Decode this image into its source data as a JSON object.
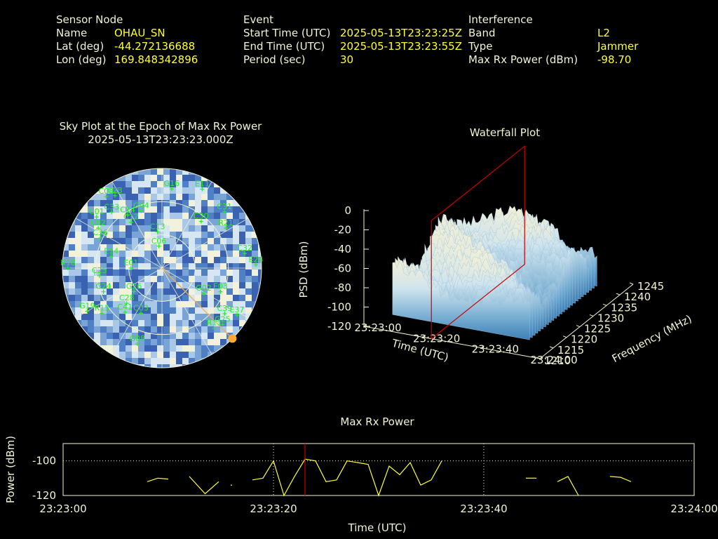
{
  "header": {
    "sensor": {
      "heading": "Sensor Node",
      "rows": [
        {
          "label": "Name",
          "value": "OHAU_SN"
        },
        {
          "label": "Lat (deg)",
          "value": "-44.272136688"
        },
        {
          "label": "Lon (deg)",
          "value": "169.848342896"
        }
      ]
    },
    "event": {
      "heading": "Event",
      "rows": [
        {
          "label": "Start Time (UTC)",
          "value": "2025-05-13T23:23:25Z"
        },
        {
          "label": "End Time (UTC)",
          "value": "2025-05-13T23:23:55Z"
        },
        {
          "label": "Period (sec)",
          "value": "30"
        }
      ]
    },
    "interference": {
      "heading": "Interference",
      "rows": [
        {
          "label": "Band",
          "value": "L2"
        },
        {
          "label": "Type",
          "value": "Jammer"
        },
        {
          "label": "Max Rx Power (dBm)",
          "value": "-98.70"
        }
      ]
    }
  },
  "colors": {
    "label": "#f3f3d2",
    "value": "#ffff33",
    "satellite": "#22ee22",
    "power_line": "#ffff33",
    "marker": "#cc0000",
    "jammer": "#ffaa33"
  },
  "chart_data": [
    {
      "type": "scatter",
      "title": "Sky Plot at the Epoch of Max Rx Power",
      "subtitle": "2025-05-13T23:23:23.000Z",
      "coordinates": "polar azimuth/elevation",
      "satellites": [
        {
          "id": "C08",
          "az": 322,
          "el": 8
        },
        {
          "id": "C23",
          "az": 327,
          "el": 12
        },
        {
          "id": "C33",
          "az": 318,
          "el": 22
        },
        {
          "id": "C12",
          "az": 326,
          "el": 40
        },
        {
          "id": "C14",
          "az": 327,
          "el": 33
        },
        {
          "id": "G04",
          "az": 340,
          "el": 35
        },
        {
          "id": "G16",
          "az": 7,
          "el": 18
        },
        {
          "id": "E11",
          "az": 27,
          "el": 10
        },
        {
          "id": "C31",
          "az": 48,
          "el": 14
        },
        {
          "id": "C01",
          "az": 308,
          "el": 15
        },
        {
          "id": "C02",
          "az": 302,
          "el": 22
        },
        {
          "id": "C36",
          "az": 296,
          "el": 28
        },
        {
          "id": "C13",
          "az": 353,
          "el": 57
        },
        {
          "id": "C30",
          "az": 40,
          "el": 35
        },
        {
          "id": "R21",
          "az": 58,
          "el": 22
        },
        {
          "id": "C06",
          "az": 352,
          "el": 70
        },
        {
          "id": "C32",
          "az": 80,
          "el": 14
        },
        {
          "id": "E01",
          "az": 270,
          "el": 62
        },
        {
          "id": "E14",
          "az": 283,
          "el": 43
        },
        {
          "id": "C25",
          "az": 263,
          "el": 33
        },
        {
          "id": "E24",
          "az": 88,
          "el": 5
        },
        {
          "id": "R18",
          "az": 270,
          "el": 5
        },
        {
          "id": "C28",
          "az": 225,
          "el": 45
        },
        {
          "id": "G26",
          "az": 230,
          "el": 57
        },
        {
          "id": "G02",
          "az": 121,
          "el": 46
        },
        {
          "id": "E03",
          "az": 112,
          "el": 33
        },
        {
          "id": "G24",
          "az": 248,
          "el": 33
        },
        {
          "id": "C41",
          "az": 220,
          "el": 38
        },
        {
          "id": "C03",
          "az": 205,
          "el": 45
        },
        {
          "id": "R15",
          "az": 233,
          "el": 22
        },
        {
          "id": "G19",
          "az": 240,
          "el": 12
        },
        {
          "id": "C39",
          "az": 126,
          "el": 20
        },
        {
          "id": "R11",
          "az": 139,
          "el": 18
        },
        {
          "id": "G25",
          "az": 133,
          "el": 15
        },
        {
          "id": "G08",
          "az": 198,
          "el": 18
        },
        {
          "id": "E37",
          "az": 122,
          "el": 10
        }
      ],
      "jammer_direction": {
        "az": 135,
        "el": 0
      }
    },
    {
      "type": "area",
      "title": "Waterfall Plot",
      "xlabel": "Time (UTC)",
      "ylabel": "Frequency (MHz)",
      "zlabel": "PSD (dBm)",
      "x_ticks": [
        "23:23:00",
        "23:23:20",
        "23:23:40",
        "23:24:00"
      ],
      "y_ticks": [
        "1210",
        "1215",
        "1220",
        "1225",
        "1230",
        "1235",
        "1240",
        "1245"
      ],
      "z_ticks": [
        "0",
        "-20",
        "-40",
        "-60",
        "-80",
        "-100",
        "-120"
      ],
      "zlim": [
        -120,
        0
      ],
      "ylim": [
        1210,
        1245
      ],
      "marker_time": "23:23:23"
    },
    {
      "type": "line",
      "title": "Max Rx Power",
      "xlabel": "Time (UTC)",
      "ylabel": "Power (dBm)",
      "x_ticks": [
        "23:23:00",
        "23:23:20",
        "23:23:40",
        "23:24:00"
      ],
      "y_ticks": [
        "-100",
        "-120"
      ],
      "ylim": [
        -120,
        -90
      ],
      "xlim_sec": [
        0,
        60
      ],
      "marker_sec": 23,
      "segments": [
        [
          [
            8,
            -112
          ],
          [
            9,
            -110
          ],
          [
            10,
            -110.5
          ]
        ],
        [
          [
            12,
            -109
          ],
          [
            13.5,
            -119
          ],
          [
            14.8,
            -112
          ]
        ],
        [
          [
            16,
            -114
          ]
        ],
        [
          [
            18,
            -111
          ],
          [
            19,
            -110
          ],
          [
            20,
            -100
          ],
          [
            21,
            -121
          ],
          [
            22,
            -109
          ],
          [
            23,
            -99
          ],
          [
            24,
            -100
          ],
          [
            25,
            -112
          ],
          [
            26,
            -111
          ],
          [
            27,
            -100
          ],
          [
            28,
            -101
          ],
          [
            29,
            -102
          ],
          [
            30,
            -121
          ],
          [
            31,
            -103
          ],
          [
            32,
            -108
          ],
          [
            33,
            -101
          ],
          [
            34,
            -114
          ],
          [
            35,
            -111
          ],
          [
            36,
            -100
          ]
        ],
        [
          [
            44,
            -110
          ],
          [
            45,
            -110
          ]
        ],
        [
          [
            47,
            -112
          ],
          [
            48,
            -109
          ],
          [
            49,
            -120
          ]
        ],
        [
          [
            52,
            -109
          ],
          [
            53,
            -109.5
          ],
          [
            54,
            -112
          ]
        ]
      ]
    }
  ]
}
